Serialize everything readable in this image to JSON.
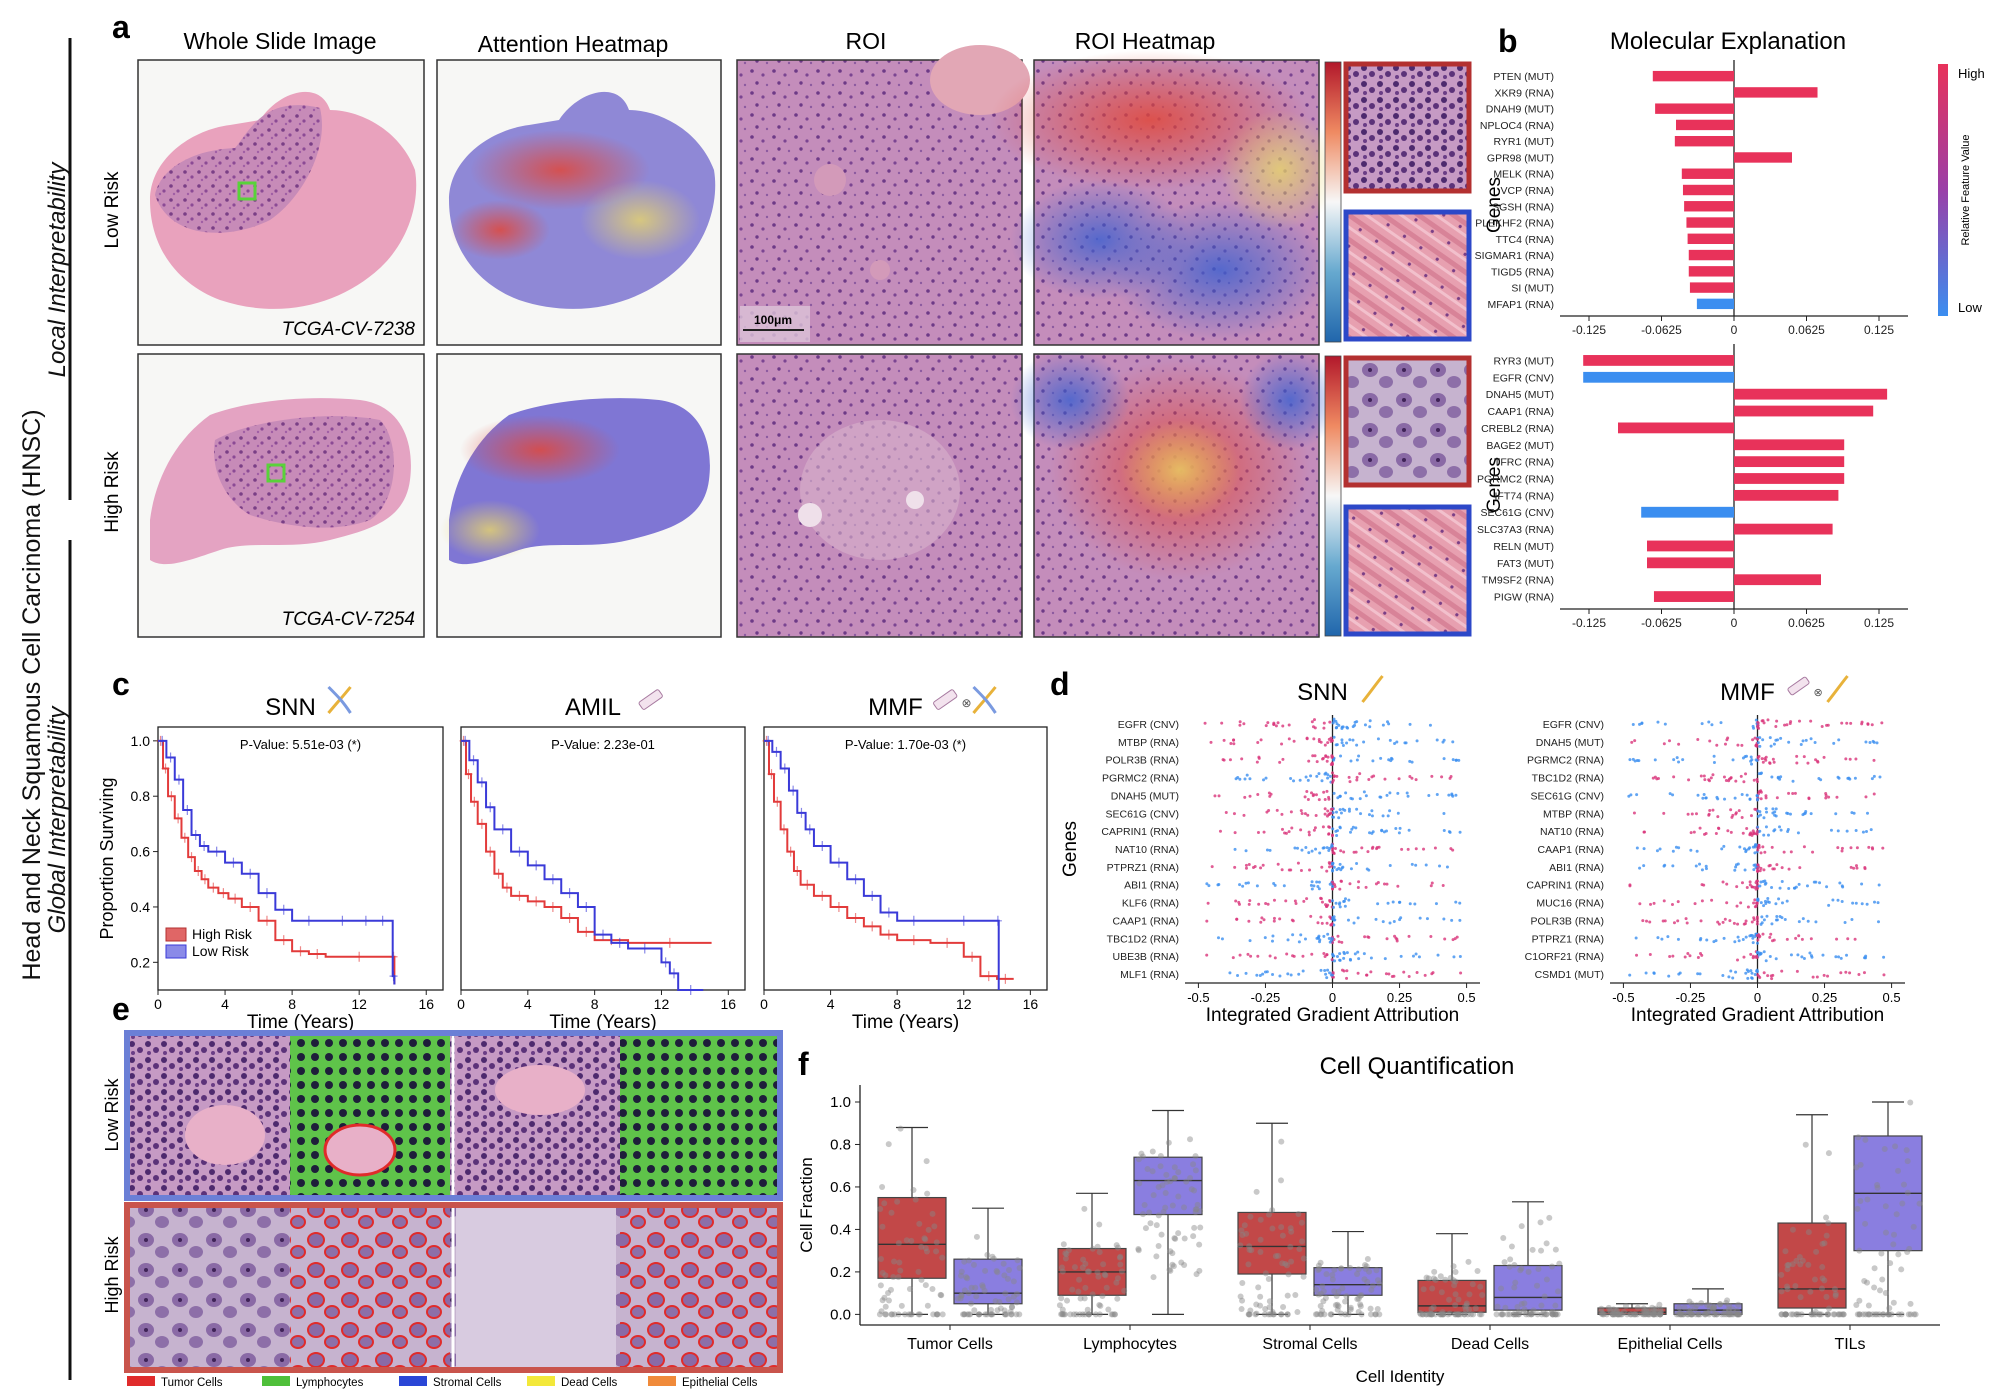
{
  "figure": {
    "side_title": "Head and Neck Squamous Cell Carcinoma (HNSC)",
    "local_label": "Local Interpretability",
    "global_label": "Global Interpretability"
  },
  "colors": {
    "red": "#e23b3b",
    "blue": "#3a3ad8",
    "pink": "#e8325a",
    "lightblue": "#3b8ef0",
    "box_red": "#c24848",
    "box_purple": "#8a7ee0",
    "low_risk_frame": "#6b7fd6",
    "high_risk_frame": "#c9544c"
  },
  "panel_a": {
    "letter": "a",
    "col_titles": [
      "Whole Slide Image",
      "Attention Heatmap",
      "ROI",
      "ROI Heatmap"
    ],
    "row_labels": [
      "Low Risk",
      "High Risk"
    ],
    "slide_ids": [
      "TCGA-CV-7238",
      "TCGA-CV-7254"
    ],
    "scale_bar": "100μm"
  },
  "panel_b": {
    "letter": "b",
    "title": "Molecular Explanation",
    "ylabel": "Genes",
    "colorbar_high": "High",
    "colorbar_low": "Low",
    "colorbar_label": "Relative Feature Value",
    "x_ticks": [
      "-0.125",
      "-0.0625",
      "0",
      "0.0625",
      "0.125"
    ]
  },
  "panel_c": {
    "letter": "c",
    "ylabel": "Proportion Surviving",
    "xlabel": "Time (Years)",
    "legend": [
      "High Risk",
      "Low Risk"
    ],
    "x_ticks": [
      "0",
      "4",
      "8",
      "12",
      "16"
    ],
    "y_ticks": [
      "0.2",
      "0.4",
      "0.6",
      "0.8",
      "1.0"
    ]
  },
  "panel_d": {
    "letter": "d",
    "ylabel": "Genes",
    "xlabel": "Integrated Gradient Attribution",
    "x_ticks": [
      "-0.5",
      "-0.25",
      "0",
      "0.25",
      "0.5"
    ]
  },
  "panel_e": {
    "letter": "e",
    "row_labels": [
      "Low Risk",
      "High Risk"
    ],
    "legend": [
      {
        "label": "Tumor Cells",
        "color": "#e02b2b"
      },
      {
        "label": "Lymphocytes",
        "color": "#4fbf3a"
      },
      {
        "label": "Stromal Cells",
        "color": "#2a46d6"
      },
      {
        "label": "Dead Cells",
        "color": "#f3e83a"
      },
      {
        "label": "Epithelial Cells",
        "color": "#f08a3a"
      }
    ]
  },
  "chart_data": [
    {
      "type": "bar",
      "orientation": "horizontal",
      "id": "b-low",
      "title": "Molecular Explanation",
      "ylabel": "Genes",
      "xlim": [
        -0.15,
        0.15
      ],
      "categories": [
        "PTEN (MUT)",
        "XKR9 (RNA)",
        "DNAH9 (MUT)",
        "NPLOC4 (RNA)",
        "RYR1 (MUT)",
        "GPR98 (MUT)",
        "MELK (RNA)",
        "VCP (RNA)",
        "SGSH (RNA)",
        "PLEKHF2 (RNA)",
        "TTC4 (RNA)",
        "SIGMAR1 (RNA)",
        "TIGD5 (RNA)",
        "SI (MUT)",
        "MFAP1 (RNA)"
      ],
      "values": [
        -0.07,
        0.072,
        -0.068,
        -0.05,
        -0.051,
        0.05,
        -0.045,
        -0.044,
        -0.043,
        -0.041,
        -0.04,
        -0.039,
        -0.039,
        -0.038,
        -0.032
      ],
      "colors": [
        "#e8325a",
        "#e8325a",
        "#e8325a",
        "#e8325a",
        "#e8325a",
        "#e8325a",
        "#e8325a",
        "#e8325a",
        "#e8325a",
        "#e8325a",
        "#e8325a",
        "#e8325a",
        "#e8325a",
        "#e8325a",
        "#3b8ef0"
      ]
    },
    {
      "type": "bar",
      "orientation": "horizontal",
      "id": "b-high",
      "ylabel": "Genes",
      "xlim": [
        -0.15,
        0.15
      ],
      "categories": [
        "RYR3 (MUT)",
        "EGFR (CNV)",
        "DNAH5 (MUT)",
        "CAAP1 (RNA)",
        "CREBL2 (RNA)",
        "BAGE2 (MUT)",
        "TFRC (RNA)",
        "PGRMC2 (RNA)",
        "IFT74 (RNA)",
        "SEC61G (CNV)",
        "SLC37A3 (RNA)",
        "RELN (MUT)",
        "FAT3 (MUT)",
        "TM9SF2 (RNA)",
        "PIGW (RNA)"
      ],
      "values": [
        -0.13,
        -0.13,
        0.132,
        0.12,
        -0.1,
        0.095,
        0.095,
        0.095,
        0.09,
        -0.08,
        0.085,
        -0.075,
        -0.075,
        0.075,
        -0.069
      ],
      "colors": [
        "#e8325a",
        "#3b8ef0",
        "#e8325a",
        "#e8325a",
        "#e8325a",
        "#e8325a",
        "#e8325a",
        "#e8325a",
        "#e8325a",
        "#3b8ef0",
        "#e8325a",
        "#e8325a",
        "#e8325a",
        "#e8325a",
        "#e8325a"
      ]
    },
    {
      "type": "line",
      "id": "km-snn",
      "title": "SNN",
      "pvalue": "P-Value: 5.51e-03 (*)",
      "xlabel": "Time (Years)",
      "ylabel": "Proportion Surviving",
      "xlim": [
        0,
        17
      ],
      "ylim": [
        0.1,
        1.05
      ],
      "series": [
        {
          "name": "High Risk",
          "x": [
            0,
            0.3,
            0.6,
            1,
            1.4,
            1.8,
            2.2,
            2.6,
            3,
            3.6,
            4.2,
            5,
            6,
            7,
            8,
            9,
            10,
            14,
            14.1
          ],
          "y": [
            1.0,
            0.9,
            0.8,
            0.72,
            0.65,
            0.58,
            0.53,
            0.5,
            0.47,
            0.45,
            0.43,
            0.4,
            0.35,
            0.28,
            0.24,
            0.23,
            0.22,
            0.22,
            0.12
          ]
        },
        {
          "name": "Low Risk",
          "x": [
            0,
            0.5,
            1,
            1.5,
            2,
            2.5,
            3,
            4,
            5,
            6,
            7,
            8,
            10,
            12,
            12.8,
            14,
            14.1
          ],
          "y": [
            1.0,
            0.94,
            0.86,
            0.75,
            0.66,
            0.62,
            0.6,
            0.56,
            0.52,
            0.45,
            0.39,
            0.35,
            0.35,
            0.35,
            0.35,
            0.15,
            0.12
          ]
        }
      ]
    },
    {
      "type": "line",
      "id": "km-amil",
      "title": "AMIL",
      "pvalue": "P-Value: 2.23e-01",
      "xlabel": "Time (Years)",
      "xlim": [
        0,
        17
      ],
      "ylim": [
        0.1,
        1.05
      ],
      "series": [
        {
          "name": "High Risk",
          "x": [
            0,
            0.3,
            0.6,
            1,
            1.5,
            2,
            2.5,
            3,
            4,
            5,
            6,
            7,
            8,
            10,
            15
          ],
          "y": [
            1.0,
            0.88,
            0.78,
            0.7,
            0.6,
            0.52,
            0.47,
            0.44,
            0.42,
            0.4,
            0.36,
            0.31,
            0.28,
            0.27,
            0.27
          ]
        },
        {
          "name": "Low Risk",
          "x": [
            0,
            0.5,
            1,
            1.5,
            2,
            3,
            4,
            5,
            6,
            7,
            8,
            9,
            10,
            12,
            12.5,
            13,
            14.5
          ],
          "y": [
            1.0,
            0.93,
            0.85,
            0.76,
            0.68,
            0.6,
            0.55,
            0.5,
            0.45,
            0.4,
            0.3,
            0.27,
            0.25,
            0.2,
            0.16,
            0.1,
            0.1
          ]
        }
      ]
    },
    {
      "type": "line",
      "id": "km-mmf",
      "title": "MMF",
      "pvalue": "P-Value: 1.70e-03 (*)",
      "xlabel": "Time (Years)",
      "xlim": [
        0,
        17
      ],
      "ylim": [
        0.1,
        1.05
      ],
      "series": [
        {
          "name": "High Risk",
          "x": [
            0,
            0.3,
            0.6,
            1,
            1.4,
            1.8,
            2.2,
            3,
            4,
            5,
            6,
            7,
            8,
            10,
            12,
            13,
            14,
            15
          ],
          "y": [
            1.0,
            0.88,
            0.78,
            0.68,
            0.6,
            0.53,
            0.48,
            0.44,
            0.4,
            0.36,
            0.33,
            0.3,
            0.28,
            0.27,
            0.22,
            0.15,
            0.14,
            0.14
          ]
        },
        {
          "name": "Low Risk",
          "x": [
            0,
            0.5,
            1,
            1.5,
            2,
            2.5,
            3,
            4,
            5,
            6,
            7,
            8,
            10,
            14,
            14.1
          ],
          "y": [
            1.0,
            0.96,
            0.9,
            0.82,
            0.74,
            0.68,
            0.62,
            0.56,
            0.5,
            0.44,
            0.38,
            0.35,
            0.35,
            0.35,
            0.1
          ]
        }
      ]
    },
    {
      "type": "scatter",
      "subtype": "beeswarm",
      "id": "d-snn",
      "title": "SNN",
      "xlabel": "Integrated Gradient Attribution",
      "ylabel": "Genes",
      "xlim": [
        -0.55,
        0.55
      ],
      "categories": [
        "EGFR (CNV)",
        "MTBP (RNA)",
        "POLR3B (RNA)",
        "PGRMC2 (RNA)",
        "DNAH5 (MUT)",
        "SEC61G (CNV)",
        "CAPRIN1 (RNA)",
        "NAT10 (RNA)",
        "PTPRZ1 (RNA)",
        "ABI1 (RNA)",
        "KLF6 (RNA)",
        "CAAP1 (RNA)",
        "TBC1D2 (RNA)",
        "UBE3B (RNA)",
        "MLF1 (RNA)"
      ]
    },
    {
      "type": "scatter",
      "subtype": "beeswarm",
      "id": "d-mmf",
      "title": "MMF",
      "xlabel": "Integrated Gradient Attribution",
      "xlim": [
        -0.55,
        0.55
      ],
      "categories": [
        "EGFR (CNV)",
        "DNAH5 (MUT)",
        "PGRMC2 (RNA)",
        "TBC1D2 (RNA)",
        "SEC61G (CNV)",
        "MTBP (RNA)",
        "NAT10 (RNA)",
        "CAAP1 (RNA)",
        "ABI1 (RNA)",
        "CAPRIN1 (RNA)",
        "MUC16 (RNA)",
        "POLR3B (RNA)",
        "PTPRZ1 (RNA)",
        "C1ORF21 (RNA)",
        "CSMD1 (MUT)"
      ]
    },
    {
      "type": "box",
      "id": "f-cells",
      "title": "Cell Quantification",
      "xlabel": "Cell Identity",
      "ylabel": "Cell Fraction",
      "ylim": [
        -0.05,
        1.08
      ],
      "y_ticks": [
        "0.0",
        "0.2",
        "0.4",
        "0.6",
        "0.8",
        "1.0"
      ],
      "categories": [
        "Tumor Cells",
        "Lymphocytes",
        "Stromal Cells",
        "Dead Cells",
        "Epithelial Cells",
        "TILs"
      ],
      "series": [
        {
          "name": "High Risk",
          "color": "#c24848",
          "boxes": [
            {
              "min": 0.0,
              "q1": 0.17,
              "median": 0.33,
              "q3": 0.55,
              "max": 0.88
            },
            {
              "min": 0.0,
              "q1": 0.09,
              "median": 0.2,
              "q3": 0.31,
              "max": 0.57
            },
            {
              "min": 0.0,
              "q1": 0.19,
              "median": 0.32,
              "q3": 0.48,
              "max": 0.9
            },
            {
              "min": 0.0,
              "q1": 0.01,
              "median": 0.04,
              "q3": 0.16,
              "max": 0.38
            },
            {
              "min": 0.0,
              "q1": 0.0,
              "median": 0.01,
              "q3": 0.03,
              "max": 0.05
            },
            {
              "min": 0.0,
              "q1": 0.03,
              "median": 0.12,
              "q3": 0.43,
              "max": 0.94
            }
          ]
        },
        {
          "name": "Low Risk",
          "color": "#8a7ee0",
          "boxes": [
            {
              "min": 0.0,
              "q1": 0.05,
              "median": 0.1,
              "q3": 0.26,
              "max": 0.5
            },
            {
              "min": 0.0,
              "q1": 0.47,
              "median": 0.63,
              "q3": 0.74,
              "max": 0.96
            },
            {
              "min": 0.0,
              "q1": 0.09,
              "median": 0.14,
              "q3": 0.22,
              "max": 0.39
            },
            {
              "min": 0.0,
              "q1": 0.02,
              "median": 0.08,
              "q3": 0.23,
              "max": 0.53
            },
            {
              "min": 0.0,
              "q1": 0.0,
              "median": 0.02,
              "q3": 0.05,
              "max": 0.12
            },
            {
              "min": 0.0,
              "q1": 0.3,
              "median": 0.57,
              "q3": 0.84,
              "max": 1.0
            }
          ]
        }
      ]
    }
  ]
}
